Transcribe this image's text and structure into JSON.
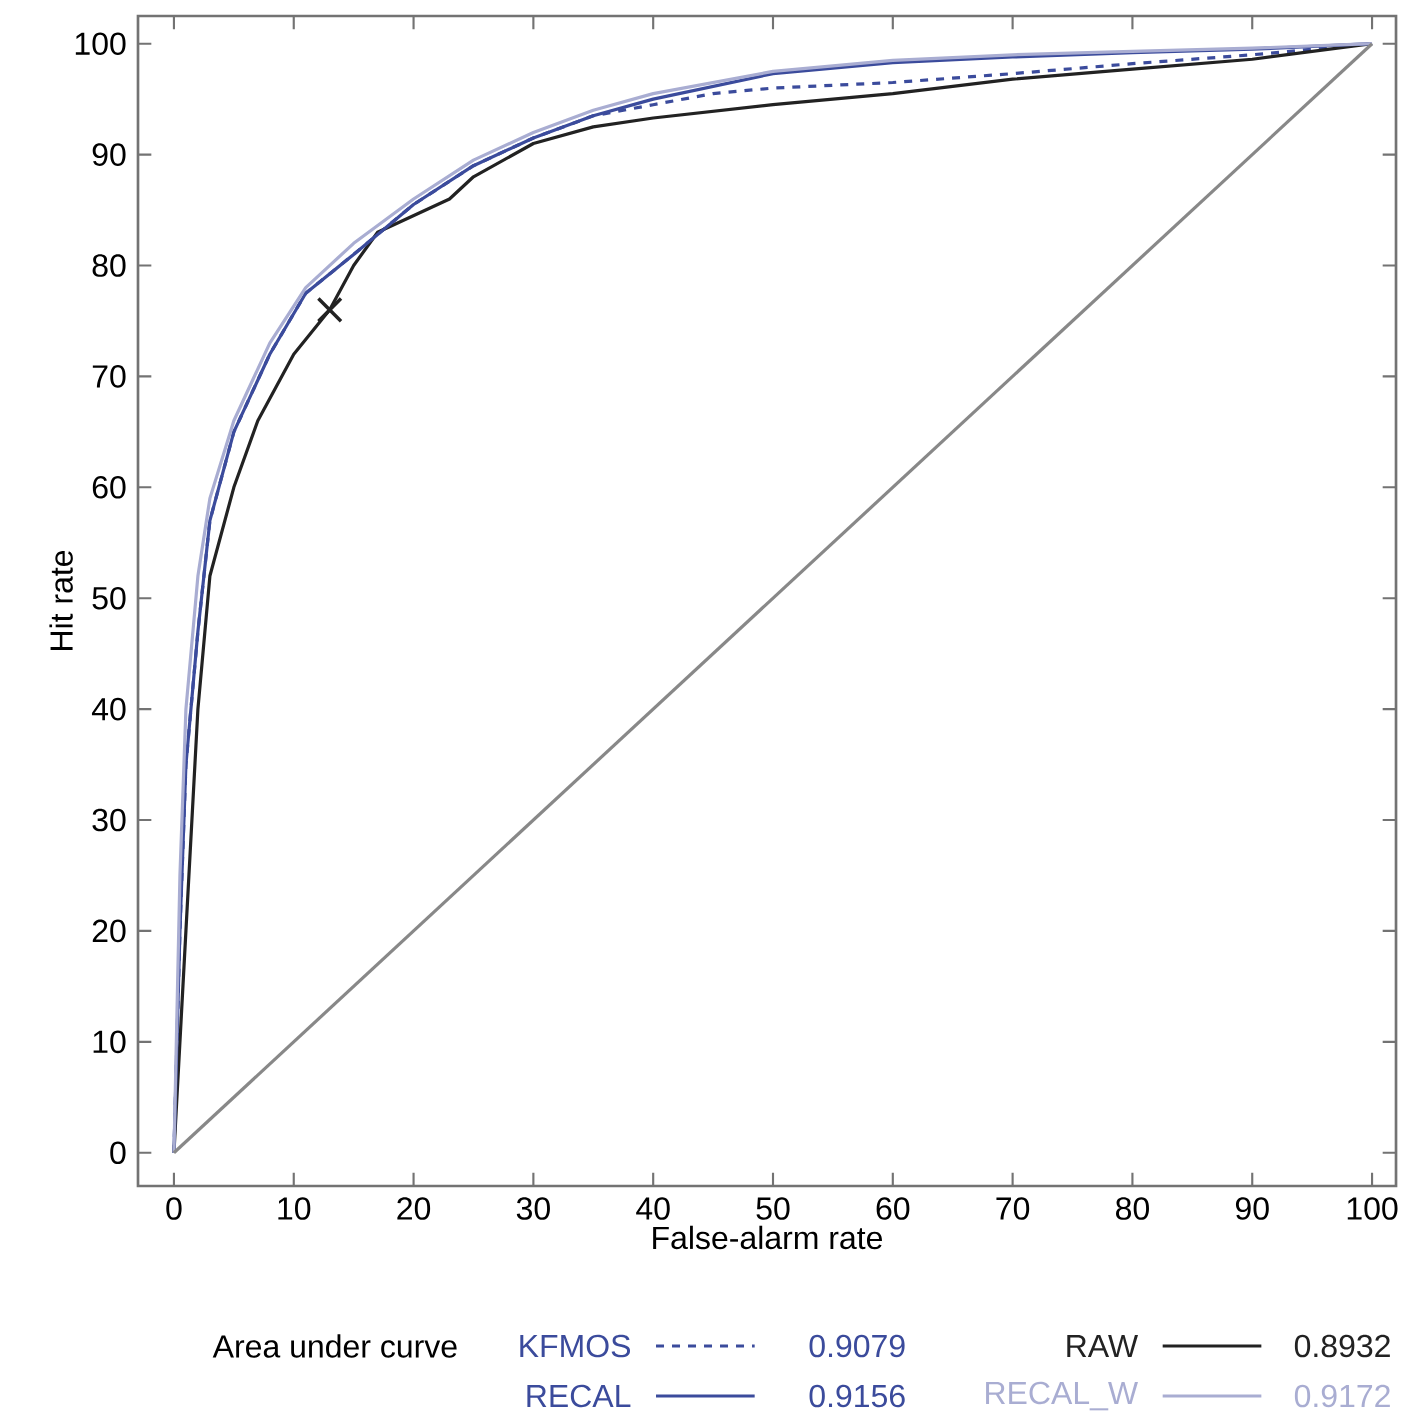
{
  "chart_data": {
    "type": "line",
    "xlabel": "False-alarm rate",
    "ylabel": "Hit rate",
    "legend_title": "Area under curve",
    "xlim": [
      -3,
      102
    ],
    "ylim": [
      -3,
      102.5
    ],
    "xticks": [
      0,
      10,
      20,
      30,
      40,
      50,
      60,
      70,
      80,
      90,
      100
    ],
    "yticks": [
      0,
      10,
      20,
      30,
      40,
      50,
      60,
      70,
      80,
      90,
      100
    ],
    "grid": false,
    "legend": "bottom",
    "marker": "none",
    "annotations": [
      "0.9079",
      "0.8932",
      "0.9156",
      "0.9172"
    ],
    "series": [
      {
        "name": "KFMOS",
        "color": "#3b4b9c",
        "line_style": "dashed",
        "x": [
          0,
          0.5,
          1,
          2,
          3,
          5,
          8,
          11,
          15,
          20,
          25,
          30,
          35,
          40,
          45,
          50,
          60,
          70,
          80,
          90,
          100
        ],
        "values": [
          0,
          20,
          35,
          47,
          57,
          65,
          72,
          77.5,
          81,
          85.5,
          89,
          91.5,
          93.5,
          94.5,
          95.5,
          96,
          96.5,
          97.3,
          98.2,
          99,
          100
        ]
      },
      {
        "name": "RAW",
        "color": "#222222",
        "x": [
          0,
          1,
          2,
          3,
          5,
          7,
          10,
          13,
          15,
          17,
          20,
          23,
          25,
          30,
          35,
          40,
          50,
          60,
          70,
          80,
          90,
          100
        ],
        "values": [
          0,
          20,
          40,
          52,
          60,
          66,
          72,
          76,
          80,
          83,
          84.5,
          86,
          88,
          91,
          92.5,
          93.3,
          94.5,
          95.5,
          96.8,
          97.7,
          98.6,
          100
        ]
      },
      {
        "name": "RECAL",
        "color": "#3b4b9c",
        "line_style": "solid",
        "x": [
          0,
          0.5,
          1,
          2,
          3,
          5,
          8,
          11,
          15,
          20,
          25,
          30,
          35,
          40,
          50,
          60,
          70,
          80,
          90,
          100
        ],
        "values": [
          0,
          20,
          35,
          47,
          57,
          65,
          72,
          77.5,
          81,
          85.5,
          89,
          91.5,
          93.5,
          95,
          97.3,
          98.3,
          98.8,
          99.2,
          99.5,
          100
        ]
      },
      {
        "name": "RECAL_W",
        "color": "#a9add2",
        "line_style": "solid",
        "x": [
          0,
          0.5,
          1,
          2,
          3,
          5,
          8,
          11,
          15,
          20,
          25,
          30,
          35,
          40,
          50,
          60,
          70,
          80,
          90,
          100
        ],
        "values": [
          0,
          25,
          40,
          52,
          59,
          66,
          73,
          78,
          82,
          86,
          89.5,
          92,
          94,
          95.5,
          97.5,
          98.5,
          99,
          99.3,
          99.6,
          100
        ]
      },
      {
        "color": "#888888",
        "x": [
          0,
          100
        ],
        "values": [
          0,
          100
        ]
      },
      {
        "type": "scatter",
        "marker": "cross",
        "color": "#222222",
        "x": [
          13
        ],
        "values": [
          76
        ]
      }
    ]
  }
}
